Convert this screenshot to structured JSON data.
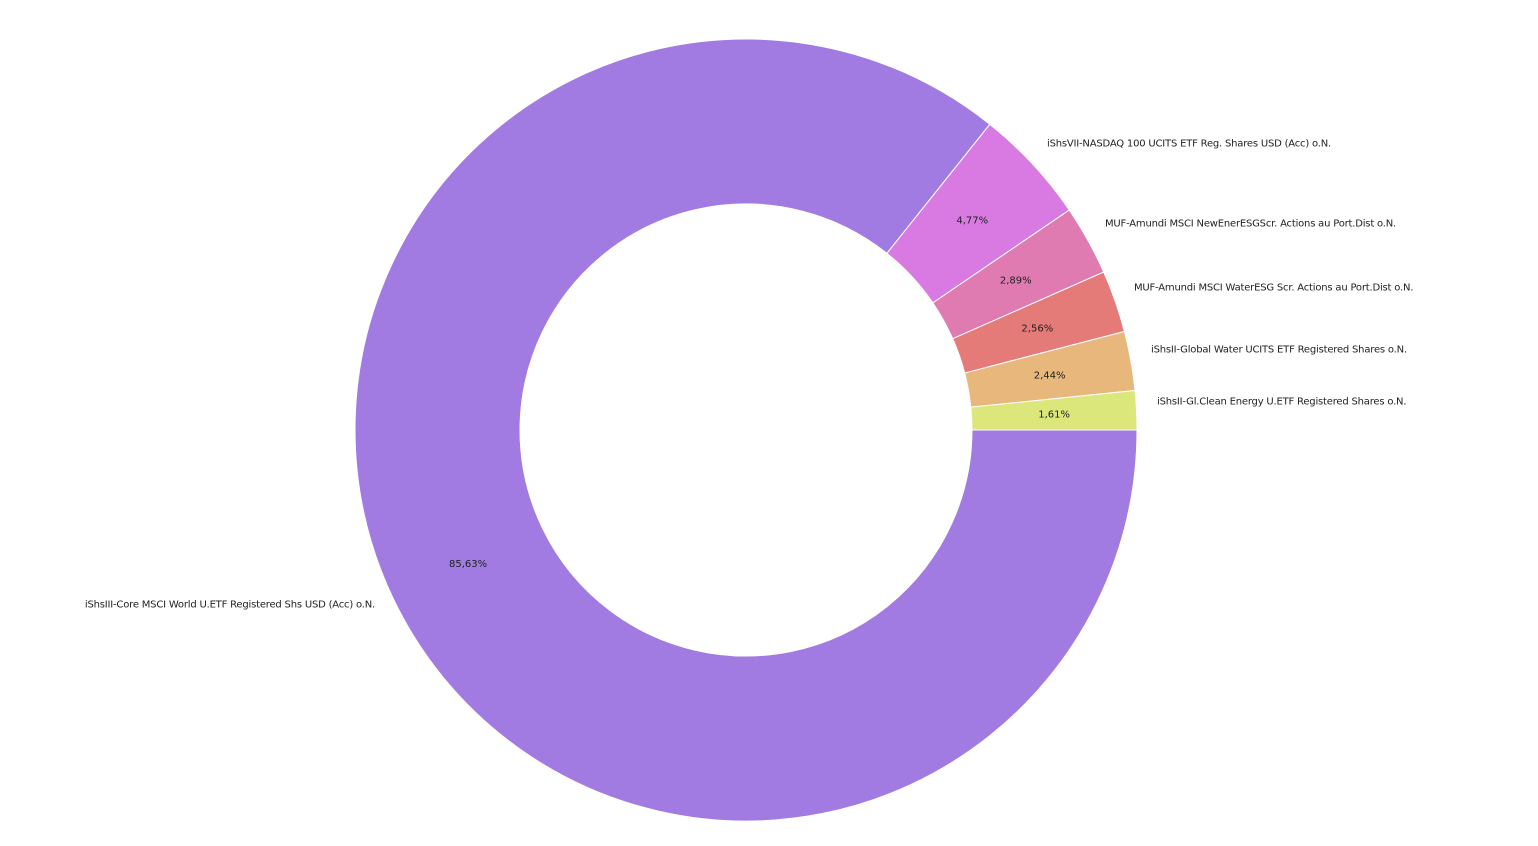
{
  "chart_data": {
    "type": "pie",
    "variant": "donut",
    "title": "",
    "slices": [
      {
        "label": "iShsIII-Core MSCI World U.ETF Registered Shs USD (Acc) o.N.",
        "value": 85.63,
        "value_label": "85,63%",
        "color": "#A17BE2"
      },
      {
        "label": "iShsVII-NASDAQ 100 UCITS ETF Reg. Shares USD (Acc) o.N.",
        "value": 4.77,
        "value_label": "4,77%",
        "color": "#D97AE2"
      },
      {
        "label": "MUF-Amundi MSCI NewEnerESGScr. Actions au Port.Dist o.N.",
        "value": 2.89,
        "value_label": "2,89%",
        "color": "#E07BB2"
      },
      {
        "label": "MUF-Amundi MSCI WaterESG Scr. Actions au Port.Dist o.N.",
        "value": 2.56,
        "value_label": "2,56%",
        "color": "#E47B79"
      },
      {
        "label": "iShsII-Global Water UCITS ETF Registered Shares o.N.",
        "value": 2.44,
        "value_label": "2,44%",
        "color": "#E8B77B"
      },
      {
        "label": "iShsII-Gl.Clean Energy U.ETF Registered Shares o.N.",
        "value": 1.61,
        "value_label": "1,61%",
        "color": "#DCE77B"
      }
    ]
  }
}
